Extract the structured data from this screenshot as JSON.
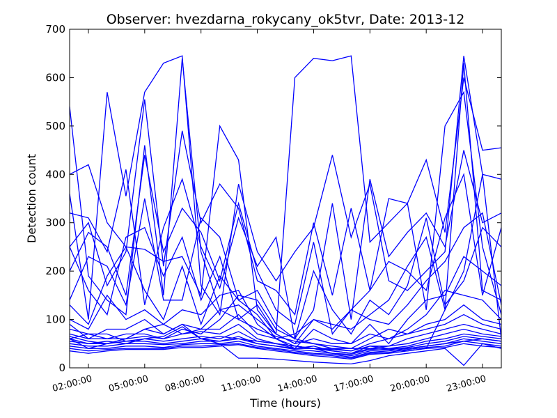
{
  "chart_data": {
    "type": "line",
    "title": "Observer: hvezdarna_rokycany_ok5tvr, Date: 2013-12",
    "xlabel": "Time (hours)",
    "ylabel": "Detection count",
    "xlim": [
      1,
      24
    ],
    "ylim": [
      0,
      700
    ],
    "x_ticks": [
      {
        "value": 2,
        "label": "02:00:00"
      },
      {
        "value": 5,
        "label": "05:00:00"
      },
      {
        "value": 8,
        "label": "08:00:00"
      },
      {
        "value": 11,
        "label": "11:00:00"
      },
      {
        "value": 14,
        "label": "14:00:00"
      },
      {
        "value": 17,
        "label": "17:00:00"
      },
      {
        "value": 20,
        "label": "20:00:00"
      },
      {
        "value": 23,
        "label": "23:00:00"
      }
    ],
    "y_ticks": [
      0,
      100,
      200,
      300,
      400,
      500,
      600,
      700
    ],
    "grid": false,
    "line_color": "#0000ff",
    "x": [
      1,
      2,
      3,
      4,
      5,
      6,
      7,
      8,
      9,
      10,
      11,
      12,
      13,
      14,
      15,
      16,
      17,
      18,
      19,
      20,
      21,
      22,
      23,
      24
    ],
    "series": [
      {
        "values": [
          540,
          190,
          140,
          110,
          460,
          150,
          640,
          240,
          120,
          100,
          80,
          65,
          55,
          50,
          45,
          40,
          40,
          38,
          35,
          40,
          120,
          630,
          160,
          140
        ]
      },
      {
        "values": [
          400,
          420,
          300,
          250,
          245,
          220,
          230,
          150,
          500,
          430,
          120,
          70,
          600,
          640,
          635,
          645,
          260,
          300,
          340,
          430,
          280,
          600,
          450,
          455
        ]
      },
      {
        "values": [
          360,
          100,
          570,
          355,
          570,
          630,
          645,
          170,
          110,
          380,
          240,
          180,
          240,
          290,
          440,
          270,
          380,
          180,
          160,
          200,
          240,
          645,
          400,
          390
        ]
      },
      {
        "values": [
          250,
          300,
          170,
          240,
          555,
          210,
          490,
          300,
          380,
          330,
          180,
          160,
          110,
          300,
          150,
          330,
          160,
          350,
          340,
          120,
          500,
          570,
          250,
          110
        ]
      },
      {
        "values": [
          320,
          310,
          240,
          410,
          130,
          290,
          390,
          250,
          165,
          310,
          210,
          270,
          60,
          120,
          340,
          100,
          390,
          230,
          280,
          320,
          250,
          450,
          300,
          320
        ]
      },
      {
        "values": [
          200,
          280,
          250,
          150,
          440,
          240,
          330,
          280,
          180,
          340,
          200,
          120,
          90,
          260,
          70,
          120,
          160,
          220,
          200,
          160,
          310,
          400,
          150,
          290
        ]
      },
      {
        "values": [
          140,
          230,
          210,
          130,
          350,
          140,
          140,
          310,
          270,
          140,
          160,
          90,
          60,
          200,
          120,
          70,
          140,
          110,
          170,
          310,
          130,
          180,
          290,
          250
        ]
      },
      {
        "values": [
          250,
          160,
          110,
          270,
          290,
          190,
          270,
          140,
          230,
          100,
          130,
          70,
          50,
          100,
          90,
          80,
          110,
          140,
          210,
          270,
          120,
          200,
          400,
          60
        ]
      },
      {
        "values": [
          130,
          90,
          190,
          250,
          160,
          100,
          210,
          90,
          190,
          140,
          110,
          60,
          70,
          100,
          80,
          120,
          100,
          90,
          130,
          180,
          220,
          290,
          320,
          130
        ]
      },
      {
        "values": [
          100,
          80,
          150,
          100,
          120,
          90,
          120,
          110,
          150,
          160,
          90,
          60,
          40,
          80,
          60,
          50,
          90,
          50,
          100,
          140,
          150,
          230,
          200,
          170
        ]
      },
      {
        "values": [
          90,
          60,
          80,
          80,
          100,
          70,
          90,
          80,
          120,
          130,
          100,
          70,
          50,
          60,
          50,
          50,
          70,
          60,
          80,
          110,
          160,
          150,
          140,
          100
        ]
      },
      {
        "values": [
          80,
          70,
          60,
          70,
          70,
          60,
          80,
          70,
          100,
          150,
          140,
          80,
          60,
          50,
          40,
          40,
          60,
          80,
          70,
          90,
          100,
          130,
          100,
          90
        ]
      },
      {
        "values": [
          70,
          60,
          60,
          60,
          80,
          90,
          70,
          80,
          80,
          110,
          70,
          60,
          45,
          40,
          40,
          35,
          50,
          60,
          70,
          80,
          90,
          110,
          90,
          80
        ]
      },
      {
        "values": [
          65,
          55,
          50,
          60,
          65,
          60,
          70,
          75,
          70,
          90,
          60,
          50,
          40,
          45,
          35,
          30,
          45,
          45,
          60,
          70,
          80,
          90,
          80,
          70
        ]
      },
      {
        "values": [
          60,
          50,
          55,
          50,
          60,
          55,
          60,
          65,
          60,
          75,
          55,
          50,
          45,
          40,
          35,
          30,
          40,
          45,
          50,
          60,
          70,
          80,
          70,
          65
        ]
      },
      {
        "values": [
          55,
          50,
          50,
          55,
          55,
          50,
          55,
          60,
          55,
          65,
          50,
          45,
          40,
          40,
          30,
          28,
          38,
          40,
          45,
          55,
          60,
          70,
          65,
          60
        ]
      },
      {
        "values": [
          50,
          45,
          45,
          50,
          50,
          48,
          50,
          55,
          55,
          60,
          50,
          45,
          38,
          35,
          30,
          25,
          35,
          38,
          42,
          50,
          55,
          65,
          60,
          55
        ]
      },
      {
        "values": [
          45,
          40,
          40,
          45,
          45,
          42,
          48,
          50,
          50,
          55,
          45,
          40,
          35,
          30,
          28,
          22,
          32,
          35,
          40,
          45,
          50,
          60,
          55,
          50
        ]
      },
      {
        "values": [
          40,
          35,
          38,
          40,
          40,
          40,
          45,
          45,
          48,
          50,
          42,
          38,
          32,
          28,
          25,
          20,
          30,
          32,
          38,
          42,
          45,
          55,
          50,
          45
        ]
      },
      {
        "values": [
          35,
          30,
          35,
          38,
          38,
          38,
          42,
          42,
          45,
          48,
          40,
          35,
          30,
          25,
          22,
          18,
          28,
          30,
          35,
          40,
          42,
          50,
          45,
          42
        ]
      },
      {
        "values": [
          60,
          40,
          50,
          60,
          80,
          70,
          90,
          60,
          50,
          20,
          20,
          18,
          15,
          12,
          10,
          8,
          15,
          25,
          30,
          35,
          40,
          5,
          50,
          40
        ]
      },
      {
        "values": [
          60,
          70,
          70,
          55,
          60,
          65,
          85,
          60,
          65,
          60,
          55,
          50,
          45,
          40,
          38,
          35,
          45,
          40,
          40,
          45,
          50,
          55,
          60,
          55
        ]
      }
    ]
  }
}
